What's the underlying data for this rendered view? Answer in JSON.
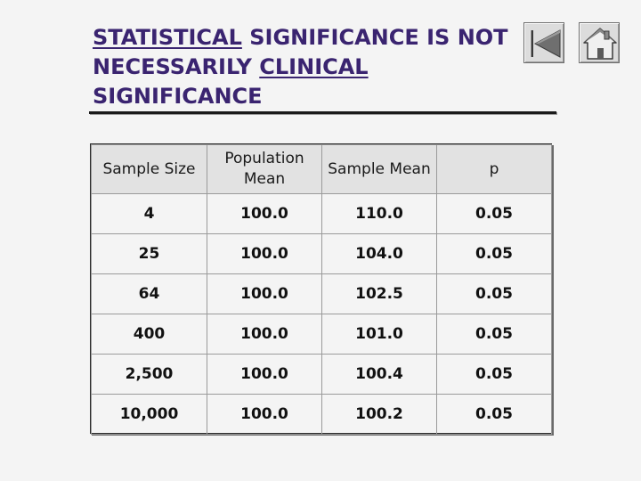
{
  "title": {
    "part1": "STATISTICAL",
    "part2": " SIGNIFICANCE IS NOT NECESSARILY ",
    "part3": "CLINICAL",
    "part4": " SIGNIFICANCE"
  },
  "nav": {
    "back_icon": "first-slide-icon",
    "home_icon": "home-icon"
  },
  "table": {
    "headers": [
      "Sample Size",
      "Population Mean",
      "Sample Mean",
      "p"
    ],
    "rows": [
      [
        "4",
        "100.0",
        "110.0",
        "0.05"
      ],
      [
        "25",
        "100.0",
        "104.0",
        "0.05"
      ],
      [
        "64",
        "100.0",
        "102.5",
        "0.05"
      ],
      [
        "400",
        "100.0",
        "101.0",
        "0.05"
      ],
      [
        "2,500",
        "100.0",
        "100.4",
        "0.05"
      ],
      [
        "10,000",
        "100.0",
        "100.2",
        "0.05"
      ]
    ]
  },
  "colors": {
    "title": "#3a2470",
    "background": "#f4f4f4",
    "header_bg": "#e2e2e2"
  }
}
